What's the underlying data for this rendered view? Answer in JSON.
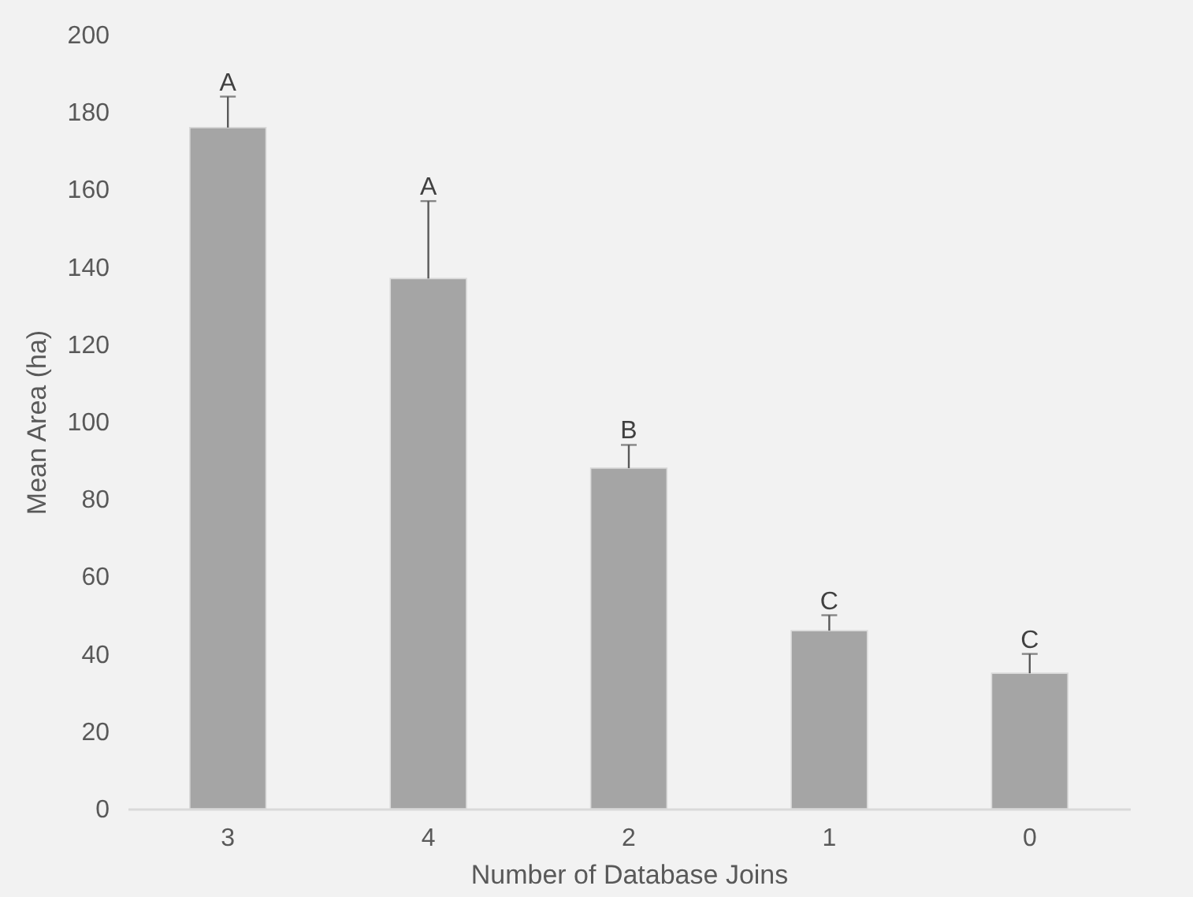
{
  "chart_data": {
    "type": "bar",
    "xlabel": "Number of Database Joins",
    "ylabel": "Mean Area (ha)",
    "categories": [
      "3",
      "4",
      "2",
      "1",
      "0"
    ],
    "values": [
      176,
      137,
      88,
      46,
      35
    ],
    "errors": [
      [
        176,
        184
      ],
      [
        137,
        157
      ],
      [
        88,
        94
      ],
      [
        46,
        50
      ],
      [
        35,
        40
      ]
    ],
    "color": "#a5a5a5",
    "ylim": [
      0,
      200
    ],
    "yticks": [
      0,
      20,
      40,
      60,
      80,
      100,
      120,
      140,
      160,
      180,
      200
    ],
    "grid": false,
    "annotations": [
      {
        "text": "A",
        "x": "3",
        "y": 184
      },
      {
        "text": "A",
        "x": "4",
        "y": 157
      },
      {
        "text": "B",
        "x": "2",
        "y": 94
      },
      {
        "text": "C",
        "x": "1",
        "y": 50
      },
      {
        "text": "C",
        "x": "0",
        "y": 40
      }
    ]
  }
}
